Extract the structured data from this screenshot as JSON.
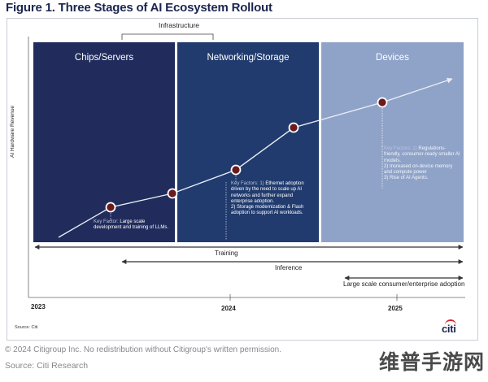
{
  "title": "Figure 1. Three Stages of AI Ecosystem Rollout",
  "y_axis_label": "AI Hardware Revenue",
  "infrastructure_label": "Infrastructure",
  "stages": [
    {
      "label": "Chips/Servers",
      "color": "#212c5c"
    },
    {
      "label": "Networking/Storage",
      "color": "#213b6e"
    },
    {
      "label": "Devices",
      "color": "#8fa3c9"
    }
  ],
  "notes": {
    "chips": {
      "key": "Key Factor:",
      "text": "Large scale development and training of LLMs."
    },
    "networking": {
      "key": "Key Factors: 1)",
      "line1": "Ethernet adoption driven by the need to scale up AI networks and further expand enterprise adoption.",
      "line2": "2) Storage modernization & Flash adoption to support AI workloads."
    },
    "devices": {
      "key": "Key Factors: 1)",
      "line1": "Regulations-friendly, consumer-ready smaller AI models.",
      "line2": "2) Increased on-device memory and compute power",
      "line3": "3) Rise of AI Agents."
    }
  },
  "bars": {
    "training": "Training",
    "inference": "Inference",
    "adoption": "Large scale consumer/enterprise adoption"
  },
  "ticks": [
    "2023",
    "2024",
    "2025"
  ],
  "source_inner": "Source: Citi",
  "logo": "citi",
  "footer_copyright": "© 2024 Citigroup Inc. No redistribution without Citigroup's written permission.",
  "footer_source": "Source: Citi Research",
  "watermark": "维普手游网",
  "colors": {
    "line": "#e8ecf4",
    "node_fill": "#6b1a1e",
    "node_stroke": "#ffffff",
    "title": "#1b2650"
  }
}
